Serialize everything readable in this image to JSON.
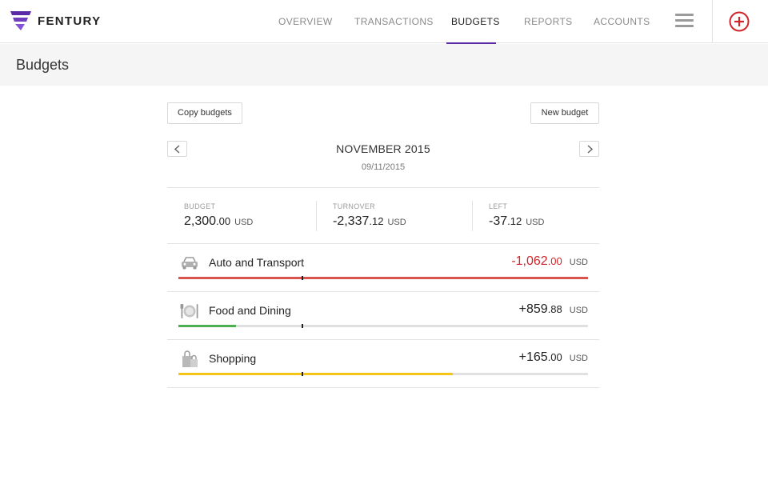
{
  "app": {
    "brand": "FENTURY",
    "brand_color": "#5b2aa6"
  },
  "nav": {
    "items": [
      {
        "label": "OVERVIEW",
        "active": false
      },
      {
        "label": "TRANSACTIONS",
        "active": false
      },
      {
        "label": "BUDGETS",
        "active": true
      },
      {
        "label": "REPORTS",
        "active": false
      },
      {
        "label": "ACCOUNTS",
        "active": false
      }
    ],
    "menu_icon": "hamburger-icon",
    "add_icon": "plus-circle-icon",
    "add_color": "#d0262a"
  },
  "page": {
    "title": "Budgets"
  },
  "toolbar": {
    "copy_label": "Copy budgets",
    "new_label": "New budget"
  },
  "period": {
    "title": "NOVEMBER 2015",
    "date": "09/11/2015",
    "prev_icon": "chevron-left-icon",
    "next_icon": "chevron-right-icon"
  },
  "summary": {
    "budget": {
      "label": "BUDGET",
      "int": "2,300",
      "dec": ".00",
      "currency": "USD"
    },
    "turnover": {
      "label": "TURNOVER",
      "int": "-2,337",
      "dec": ".12",
      "currency": "USD"
    },
    "left": {
      "label": "LEFT",
      "int": "-37",
      "dec": ".12",
      "currency": "USD"
    }
  },
  "budgets": [
    {
      "name": "Auto and Transport",
      "icon": "car-icon",
      "amount_int": "-1,062",
      "amount_dec": ".00",
      "currency": "USD",
      "amount_color": "#d0262a",
      "bar_color": "#d9534f",
      "progress": 1.0,
      "marker": 0.3
    },
    {
      "name": "Food and Dining",
      "icon": "plate-cutlery-icon",
      "amount_int": "+859",
      "amount_dec": ".88",
      "currency": "USD",
      "amount_color": "#222222",
      "bar_color": "#4caf50",
      "progress": 0.14,
      "marker": 0.3
    },
    {
      "name": "Shopping",
      "icon": "shopping-bags-icon",
      "amount_int": "+165",
      "amount_dec": ".00",
      "currency": "USD",
      "amount_color": "#222222",
      "bar_color": "#f5c518",
      "progress": 0.67,
      "marker": 0.3
    }
  ]
}
